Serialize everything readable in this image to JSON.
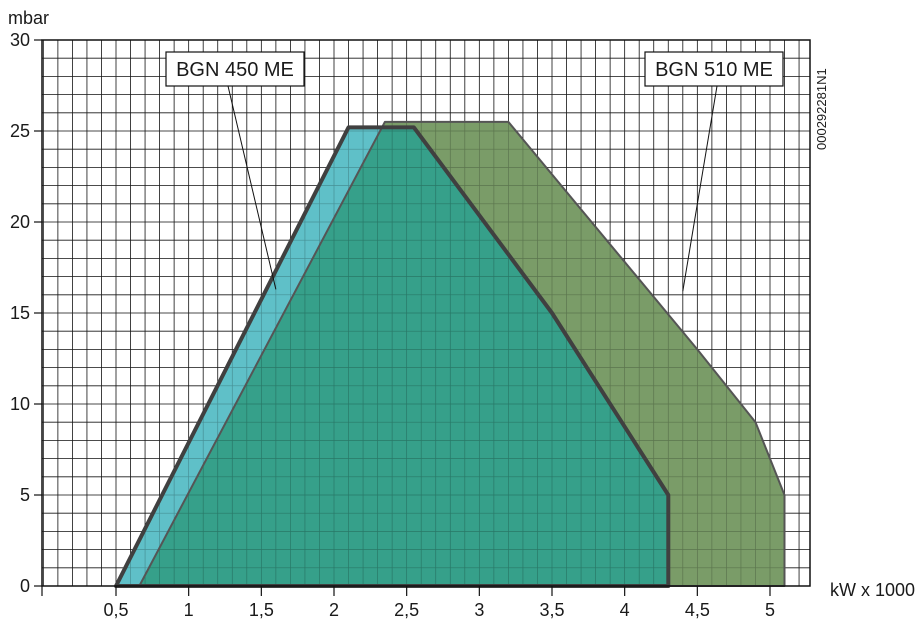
{
  "chart_data": {
    "type": "area",
    "ylabel": "mbar",
    "xlabel": "kW x 1000",
    "code": "000292281N1",
    "xlim": [
      0,
      5.15
    ],
    "ylim": [
      0,
      30
    ],
    "x_ticks": [
      {
        "v": 0.5,
        "label": "0,5"
      },
      {
        "v": 1,
        "label": "1"
      },
      {
        "v": 1.5,
        "label": "1,5"
      },
      {
        "v": 2,
        "label": "2"
      },
      {
        "v": 2.5,
        "label": "2,5"
      },
      {
        "v": 3,
        "label": "3"
      },
      {
        "v": 3.5,
        "label": "3,5"
      },
      {
        "v": 4,
        "label": "4"
      },
      {
        "v": 4.5,
        "label": "4,5"
      },
      {
        "v": 5,
        "label": "5"
      }
    ],
    "y_ticks": [
      {
        "v": 0,
        "label": "0"
      },
      {
        "v": 5,
        "label": "5"
      },
      {
        "v": 10,
        "label": "10"
      },
      {
        "v": 15,
        "label": "15"
      },
      {
        "v": 20,
        "label": "20"
      },
      {
        "v": 25,
        "label": "25"
      },
      {
        "v": 30,
        "label": "30"
      }
    ],
    "grid": true,
    "series": [
      {
        "name": "BGN 510 ME",
        "color": "#7a9c68",
        "stroke": "#555555",
        "points": [
          [
            0.66,
            0
          ],
          [
            2.35,
            25.5
          ],
          [
            3.2,
            25.5
          ],
          [
            4.5,
            13
          ],
          [
            4.9,
            9
          ],
          [
            5.1,
            5
          ],
          [
            5.1,
            0
          ]
        ]
      },
      {
        "name": "BGN 450 ME",
        "color": "#5fc0c8",
        "stroke": "#404040",
        "points": [
          [
            0.5,
            0
          ],
          [
            2.1,
            25.2
          ],
          [
            2.55,
            25.2
          ],
          [
            3.5,
            15
          ],
          [
            4.3,
            5
          ],
          [
            4.3,
            0
          ]
        ]
      }
    ],
    "overlap_color": "#36a08a",
    "labels": [
      {
        "text": "BGN 450 ME",
        "series": "BGN 450 ME",
        "anchor": [
          1.6,
          16.3
        ]
      },
      {
        "text": "BGN 510 ME",
        "series": "BGN 510 ME",
        "anchor": [
          4.4,
          16.2
        ]
      }
    ]
  }
}
